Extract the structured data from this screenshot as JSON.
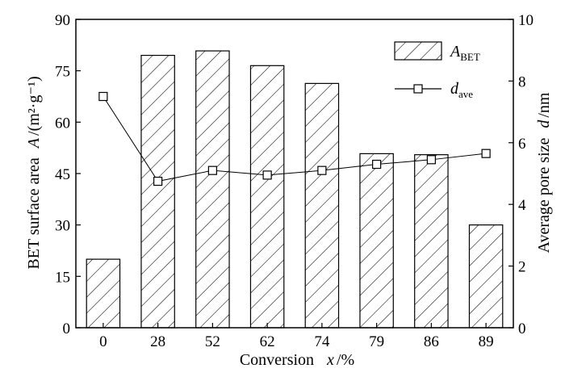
{
  "chart_data": {
    "type": "bar+line",
    "categories": [
      "0",
      "28",
      "52",
      "62",
      "74",
      "79",
      "86",
      "89"
    ],
    "series": [
      {
        "axis": "left",
        "type": "bar",
        "fill": "diagonal-hatch",
        "values": [
          20,
          79.5,
          80.8,
          76.5,
          71.3,
          50.8,
          50.5,
          30
        ]
      },
      {
        "axis": "right",
        "type": "line",
        "marker": "open-square",
        "values": [
          7.5,
          4.75,
          5.1,
          4.95,
          5.1,
          5.3,
          5.45,
          5.65
        ]
      }
    ],
    "legend": {
      "position": "top-right",
      "items": [
        {
          "main": "A",
          "sub": "BET"
        },
        {
          "main": "d",
          "sub": "ave"
        }
      ]
    },
    "xlabel": {
      "prefix": "Conversion",
      "var": "x",
      "unit": "/%"
    },
    "ylabel_left": {
      "prefix": "BET surface area",
      "var": "A",
      "unit": "/(m²·g⁻¹)"
    },
    "ylabel_right": {
      "prefix": "Average pore size",
      "var": "d",
      "unit": "/nm"
    },
    "ylim_left": [
      0,
      90
    ],
    "yticks_left": [
      0,
      15,
      30,
      45,
      60,
      75,
      90
    ],
    "ylim_right": [
      0,
      10
    ],
    "yticks_right": [
      0,
      2,
      4,
      6,
      8,
      10
    ],
    "grid": false,
    "colors": {
      "ink": "#000000",
      "background": "#ffffff"
    }
  }
}
